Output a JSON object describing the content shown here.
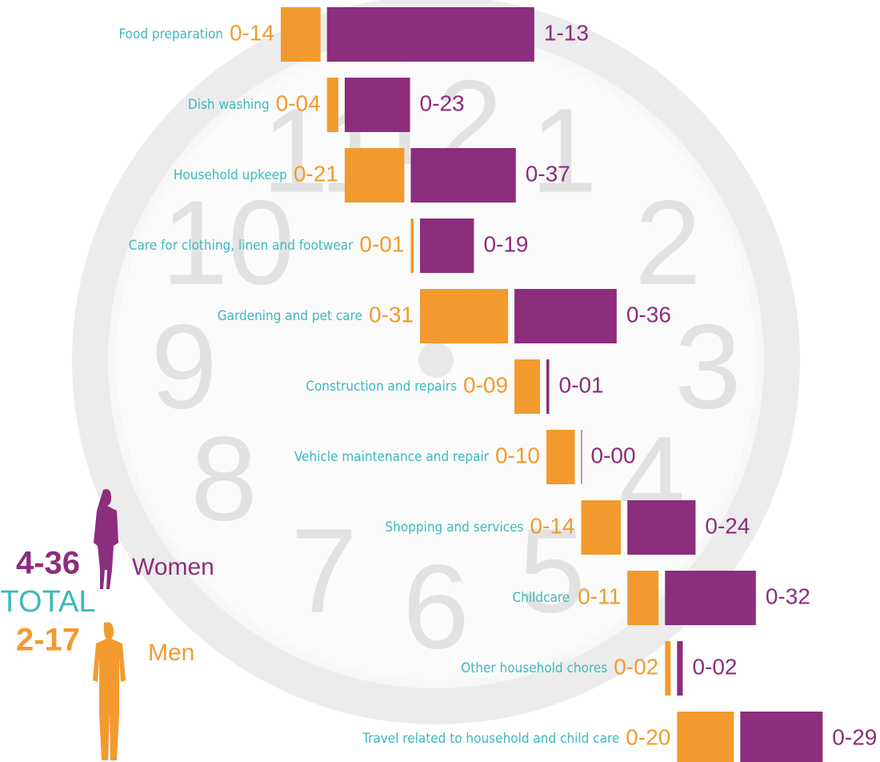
{
  "clock": {
    "numerals": [
      "12",
      "1",
      "2",
      "3",
      "4",
      "5",
      "6",
      "7",
      "8",
      "9",
      "10",
      "11"
    ]
  },
  "chart_data": {
    "type": "bar",
    "categories": [
      "Food preparation",
      "Dish washing",
      "Household upkeep",
      "Care for clothing, linen and footwear",
      "Gardening and pet care",
      "Construction and repairs",
      "Vehicle maintenance and repair",
      "Shopping and services",
      "Childcare",
      "Other household chores",
      "Travel related to household and child care"
    ],
    "series": [
      {
        "name": "Men",
        "color": "#f29a2e",
        "values": [
          14,
          4,
          21,
          1,
          31,
          9,
          10,
          14,
          11,
          2,
          20
        ],
        "value_labels": [
          "0-14",
          "0-04",
          "0-21",
          "0-01",
          "0-31",
          "0-09",
          "0-10",
          "0-14",
          "0-11",
          "0-02",
          "0-20"
        ],
        "total": 137,
        "total_label": "2-17"
      },
      {
        "name": "Women",
        "color": "#8c2d7d",
        "values": [
          73,
          23,
          37,
          19,
          36,
          1,
          0,
          24,
          32,
          2,
          29
        ],
        "value_labels": [
          "1-13",
          "0-23",
          "0-37",
          "0-19",
          "0-36",
          "0-01",
          "0-00",
          "0-24",
          "0-32",
          "0-02",
          "0-29"
        ],
        "total": 276,
        "total_label": "4-36"
      }
    ],
    "total_text": "TOTAL"
  }
}
